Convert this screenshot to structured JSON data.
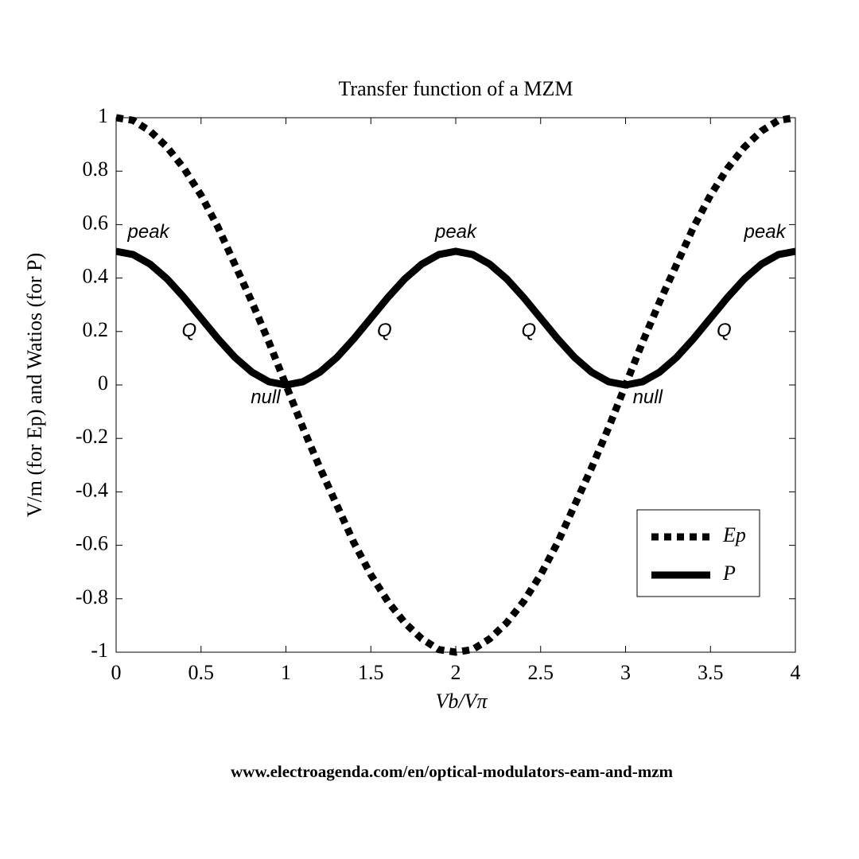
{
  "chart_data": {
    "type": "line",
    "title": "Transfer function of a MZM",
    "x_label": "Vb/Vπ",
    "y_label": "V/m (for Ep) and Watios (for P)",
    "source": "www.electroagenda.com/en/optical-modulators-eam-and-mzm",
    "x": [
      0,
      0.1,
      0.2,
      0.3,
      0.4,
      0.5,
      0.6,
      0.7,
      0.8,
      0.9,
      1,
      1.1,
      1.2,
      1.3,
      1.4,
      1.5,
      1.6,
      1.7,
      1.8,
      1.9,
      2,
      2.1,
      2.2,
      2.3,
      2.4,
      2.5,
      2.6,
      2.7,
      2.8,
      2.9,
      3,
      3.1,
      3.2,
      3.3,
      3.4,
      3.5,
      3.6,
      3.7,
      3.8,
      3.9,
      4
    ],
    "series": [
      {
        "name": "Ep",
        "color": "#000000",
        "style": "dotted",
        "values": [
          1,
          0.99,
          0.95,
          0.89,
          0.81,
          0.71,
          0.59,
          0.45,
          0.31,
          0.16,
          0,
          -0.16,
          -0.31,
          -0.45,
          -0.59,
          -0.71,
          -0.81,
          -0.89,
          -0.95,
          -0.99,
          -1,
          -0.99,
          -0.95,
          -0.89,
          -0.81,
          -0.71,
          -0.59,
          -0.45,
          -0.31,
          -0.16,
          0,
          0.16,
          0.31,
          0.45,
          0.59,
          0.71,
          0.81,
          0.89,
          0.95,
          0.99,
          1
        ]
      },
      {
        "name": "P",
        "color": "#000000",
        "style": "solid",
        "values": [
          0.5,
          0.488,
          0.452,
          0.397,
          0.327,
          0.25,
          0.173,
          0.103,
          0.048,
          0.012,
          0,
          0.012,
          0.048,
          0.103,
          0.173,
          0.25,
          0.327,
          0.397,
          0.452,
          0.488,
          0.5,
          0.488,
          0.452,
          0.397,
          0.327,
          0.25,
          0.173,
          0.103,
          0.048,
          0.012,
          0,
          0.012,
          0.048,
          0.103,
          0.173,
          0.25,
          0.327,
          0.397,
          0.452,
          0.488,
          0.5
        ]
      }
    ],
    "xlim": [
      0,
      4
    ],
    "xticks": [
      0,
      0.5,
      1,
      1.5,
      2,
      2.5,
      3,
      3.5,
      4
    ],
    "ylim": [
      -1,
      1
    ],
    "yticks": [
      -1,
      -0.8,
      -0.6,
      -0.4,
      -0.2,
      0,
      0.2,
      0.4,
      0.6,
      0.8,
      1
    ],
    "grid": false,
    "legend": "lower right",
    "annotations": [
      {
        "text": "peak",
        "x": 0.19,
        "y": 0.57
      },
      {
        "text": "peak",
        "x": 2,
        "y": 0.57
      },
      {
        "text": "peak",
        "x": 3.82,
        "y": 0.57
      },
      {
        "text": "Q",
        "x": 0.43,
        "y": 0.2
      },
      {
        "text": "Q",
        "x": 1.58,
        "y": 0.2
      },
      {
        "text": "Q",
        "x": 2.43,
        "y": 0.2
      },
      {
        "text": "Q",
        "x": 3.58,
        "y": 0.2
      },
      {
        "text": "null",
        "x": 0.88,
        "y": -0.05
      },
      {
        "text": "null",
        "x": 3.13,
        "y": -0.05
      }
    ]
  }
}
